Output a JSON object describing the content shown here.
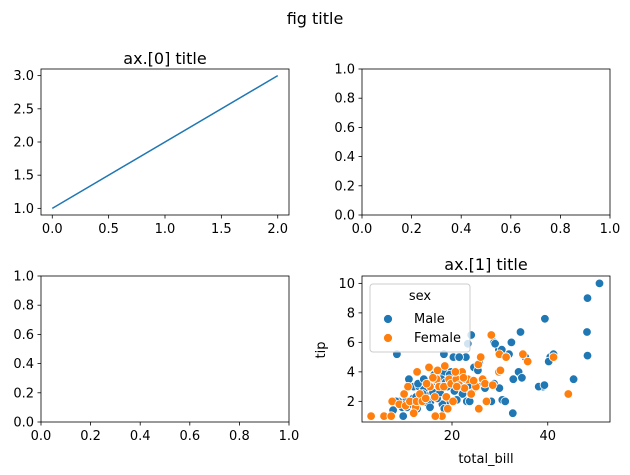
{
  "figure": {
    "suptitle": "fig title"
  },
  "chart_data": [
    {
      "type": "line",
      "title": "ax.[0] title",
      "x": [
        0,
        2
      ],
      "y": [
        1.0,
        3.0
      ],
      "xlim": [
        -0.1,
        2.1
      ],
      "ylim": [
        0.9,
        3.1
      ],
      "xticks": [
        0,
        0.5,
        1,
        1.5,
        2
      ],
      "xtick_labels": [
        "0.0",
        "0.5",
        "1.0",
        "1.5",
        "2.0"
      ],
      "yticks": [
        1,
        1.5,
        2,
        2.5,
        3
      ],
      "ytick_labels": [
        "1.0",
        "1.5",
        "2.0",
        "2.5",
        "3.0"
      ],
      "color": "#1f77b4"
    },
    {
      "type": "scatter",
      "title": "",
      "note": "empty axes",
      "xlim": [
        0,
        1
      ],
      "ylim": [
        0,
        1
      ],
      "xticks": [
        0,
        0.2,
        0.4,
        0.6,
        0.8,
        1
      ],
      "xtick_labels": [
        "0.0",
        "0.2",
        "0.4",
        "0.6",
        "0.8",
        "1.0"
      ],
      "yticks": [
        0,
        0.2,
        0.4,
        0.6,
        0.8,
        1
      ],
      "ytick_labels": [
        "0.0",
        "0.2",
        "0.4",
        "0.6",
        "0.8",
        "1.0"
      ]
    },
    {
      "type": "scatter",
      "title": "",
      "note": "empty axes",
      "xlim": [
        0,
        1
      ],
      "ylim": [
        0,
        1
      ],
      "xticks": [
        0,
        0.2,
        0.4,
        0.6,
        0.8,
        1
      ],
      "xtick_labels": [
        "0.0",
        "0.2",
        "0.4",
        "0.6",
        "0.8",
        "1.0"
      ],
      "yticks": [
        0,
        0.2,
        0.4,
        0.6,
        0.8,
        1
      ],
      "ytick_labels": [
        "0.0",
        "0.2",
        "0.4",
        "0.6",
        "0.8",
        "1.0"
      ]
    },
    {
      "type": "scatter",
      "title": "ax.[1] title",
      "xlabel": "total_bill",
      "ylabel": "tip",
      "xlim": [
        1.2,
        53.0
      ],
      "ylim": [
        0.6,
        10.5
      ],
      "xticks": [
        20,
        40
      ],
      "xtick_labels": [
        "20",
        "40"
      ],
      "yticks": [
        2,
        4,
        6,
        8,
        10
      ],
      "ytick_labels": [
        "2",
        "4",
        "6",
        "8",
        "10"
      ],
      "legend": {
        "title": "sex",
        "location": "upper-left",
        "entries": [
          "Male",
          "Female"
        ]
      },
      "series": [
        {
          "name": "Male",
          "color": "#1f77b4",
          "points": [
            [
              50.8,
              10.0
            ],
            [
              48.3,
              9.0
            ],
            [
              48.2,
              6.7
            ],
            [
              48.3,
              5.1
            ],
            [
              39.4,
              7.6
            ],
            [
              40.5,
              5.0
            ],
            [
              41.2,
              5.2
            ],
            [
              39.0,
              3.0
            ],
            [
              40.2,
              4.7
            ],
            [
              38.1,
              3.0
            ],
            [
              39.3,
              3.1
            ],
            [
              45.4,
              3.5
            ],
            [
              34.3,
              6.7
            ],
            [
              31.9,
              5.2
            ],
            [
              32.8,
              3.5
            ],
            [
              29.8,
              5.5
            ],
            [
              28.8,
              6.0
            ],
            [
              30.4,
              5.5
            ],
            [
              29.0,
              5.9
            ],
            [
              32.4,
              6.0
            ],
            [
              31.3,
              5.0
            ],
            [
              24.0,
              6.5
            ],
            [
              23.3,
              5.9
            ],
            [
              22.9,
              5.0
            ],
            [
              20.3,
              5.0
            ],
            [
              21.5,
              5.0
            ],
            [
              18.3,
              5.2
            ],
            [
              19.8,
              4.0
            ],
            [
              24.6,
              4.3
            ],
            [
              25.4,
              4.1
            ],
            [
              25.7,
              4.6
            ],
            [
              26.4,
              3.1
            ],
            [
              27.2,
              3.0
            ],
            [
              28.2,
              2.0
            ],
            [
              28.8,
              3.2
            ],
            [
              29.9,
              2.9
            ],
            [
              30.5,
              2.1
            ],
            [
              31.1,
              2.0
            ],
            [
              32.7,
              1.2
            ],
            [
              33.9,
              4.0
            ],
            [
              34.6,
              3.6
            ],
            [
              35.3,
              5.0
            ],
            [
              20.7,
              3.5
            ],
            [
              20.1,
              3.2
            ],
            [
              17.3,
              4.0
            ],
            [
              18.2,
              4.0
            ],
            [
              16.3,
              3.8
            ],
            [
              17.1,
              3.2
            ],
            [
              15.0,
              3.0
            ],
            [
              16.0,
              2.6
            ],
            [
              14.3,
              2.5
            ],
            [
              15.5,
              2.0
            ],
            [
              13.4,
              2.0
            ],
            [
              14.8,
              1.9
            ],
            [
              12.7,
              1.5
            ],
            [
              13.0,
              2.0
            ],
            [
              11.6,
              1.5
            ],
            [
              10.3,
              2.0
            ],
            [
              10.1,
              1.8
            ],
            [
              9.6,
              1.6
            ],
            [
              8.8,
              2.0
            ],
            [
              7.7,
              1.4
            ],
            [
              8.3,
              2.0
            ],
            [
              10.6,
              1.6
            ],
            [
              11.0,
              1.8
            ],
            [
              11.9,
              2.2
            ],
            [
              12.5,
              2.3
            ],
            [
              12.0,
              3.0
            ],
            [
              13.1,
              3.0
            ],
            [
              14.1,
              2.8
            ],
            [
              15.7,
              3.1
            ],
            [
              16.5,
              3.5
            ],
            [
              17.8,
              3.5
            ],
            [
              18.7,
              3.3
            ],
            [
              19.5,
              3.8
            ],
            [
              20.8,
              3.2
            ],
            [
              21.6,
              3.0
            ],
            [
              22.2,
              2.5
            ],
            [
              23.1,
              2.0
            ],
            [
              24.1,
              2.7
            ],
            [
              19.1,
              2.0
            ],
            [
              18.0,
              1.8
            ],
            [
              16.9,
              2.2
            ],
            [
              17.5,
              2.6
            ],
            [
              20.5,
              2.7
            ],
            [
              21.0,
              2.1
            ],
            [
              22.8,
              3.5
            ],
            [
              23.7,
              2.0
            ],
            [
              11.0,
              3.5
            ],
            [
              12.9,
              3.2
            ],
            [
              13.9,
              2.5
            ],
            [
              15.4,
              1.6
            ],
            [
              18.4,
              1.5
            ],
            [
              14.1,
              3.5
            ],
            [
              8.5,
              5.2
            ],
            [
              9.8,
              1.0
            ],
            [
              19.0,
              3.0
            ],
            [
              21.9,
              3.8
            ],
            [
              23.5,
              3.1
            ],
            [
              26.9,
              2.9
            ]
          ]
        },
        {
          "name": "Female",
          "color": "#ff7f0e",
          "points": [
            [
              3.1,
              1.0
            ],
            [
              5.8,
              1.0
            ],
            [
              7.3,
              1.0
            ],
            [
              7.5,
              2.0
            ],
            [
              9.0,
              1.8
            ],
            [
              10.0,
              2.5
            ],
            [
              10.3,
              1.7
            ],
            [
              11.2,
              2.0
            ],
            [
              12.4,
              1.6
            ],
            [
              12.6,
              2.0
            ],
            [
              13.3,
              2.5
            ],
            [
              13.8,
              2.0
            ],
            [
              14.5,
              2.2
            ],
            [
              15.4,
              3.0
            ],
            [
              16.4,
              2.3
            ],
            [
              16.8,
              3.5
            ],
            [
              17.3,
              3.0
            ],
            [
              17.9,
              1.0
            ],
            [
              18.3,
              3.0
            ],
            [
              18.8,
              2.3
            ],
            [
              19.4,
              3.5
            ],
            [
              19.8,
              3.2
            ],
            [
              20.2,
              2.0
            ],
            [
              20.9,
              3.5
            ],
            [
              21.5,
              3.1
            ],
            [
              22.1,
              4.0
            ],
            [
              22.6,
              2.9
            ],
            [
              23.3,
              3.5
            ],
            [
              24.0,
              2.5
            ],
            [
              25.0,
              3.0
            ],
            [
              25.5,
              4.5
            ],
            [
              26.0,
              5.0
            ],
            [
              26.4,
              3.5
            ],
            [
              26.9,
              3.2
            ],
            [
              27.2,
              2.0
            ],
            [
              28.2,
              6.5
            ],
            [
              29.8,
              4.0
            ],
            [
              29.9,
              5.2
            ],
            [
              31.3,
              5.0
            ],
            [
              34.8,
              5.2
            ],
            [
              35.8,
              4.7
            ],
            [
              41.2,
              5.0
            ],
            [
              44.3,
              2.5
            ],
            [
              18.5,
              4.4
            ],
            [
              17.0,
              4.1
            ],
            [
              15.2,
              4.3
            ],
            [
              20.7,
              4.0
            ],
            [
              22.4,
              3.6
            ],
            [
              24.5,
              3.4
            ],
            [
              12.0,
              1.2
            ],
            [
              14.7,
              3.2
            ],
            [
              16.0,
              3.6
            ],
            [
              10.8,
              3.0
            ],
            [
              12.7,
              4.0
            ],
            [
              21.0,
              3.0
            ],
            [
              19.1,
              1.5
            ],
            [
              25.6,
              1.5
            ],
            [
              28.5,
              3.1
            ],
            [
              30.1,
              4.1
            ],
            [
              16.5,
              1.0
            ]
          ]
        }
      ]
    }
  ]
}
